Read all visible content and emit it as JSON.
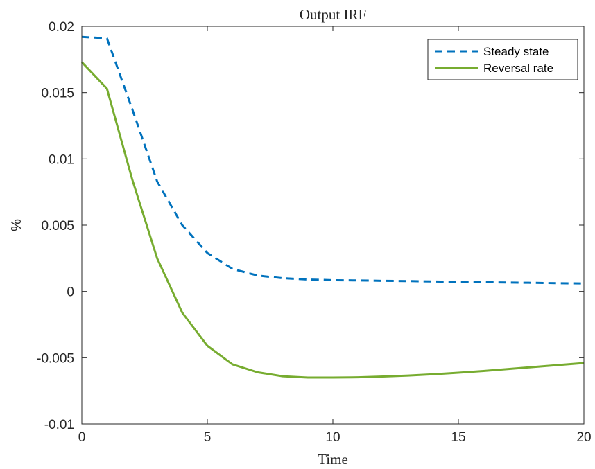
{
  "chart_data": {
    "type": "line",
    "title": "Output IRF",
    "xlabel": "Time",
    "ylabel": "%",
    "xlim": [
      0,
      20
    ],
    "ylim": [
      -0.01,
      0.02
    ],
    "xticks": [
      0,
      5,
      10,
      15,
      20
    ],
    "xtick_labels": [
      "0",
      "5",
      "10",
      "15",
      "20"
    ],
    "yticks": [
      -0.01,
      -0.005,
      0,
      0.005,
      0.01,
      0.015,
      0.02
    ],
    "ytick_labels": [
      "-0.01",
      "-0.005",
      "0",
      "0.005",
      "0.01",
      "0.015",
      "0.02"
    ],
    "grid": false,
    "legend_position": "top-right",
    "x": [
      0,
      1,
      2,
      3,
      4,
      5,
      6,
      7,
      8,
      9,
      10,
      11,
      12,
      13,
      14,
      15,
      16,
      17,
      18,
      19,
      20
    ],
    "series": [
      {
        "name": "Steady state",
        "color": "#0072BD",
        "style": "dashed",
        "values": [
          0.0192,
          0.0191,
          0.0138,
          0.0083,
          0.005,
          0.0029,
          0.0017,
          0.0012,
          0.001,
          0.0009,
          0.00085,
          0.00083,
          0.0008,
          0.00078,
          0.00075,
          0.00072,
          0.0007,
          0.00067,
          0.00065,
          0.00062,
          0.0006
        ]
      },
      {
        "name": "Reversal rate",
        "color": "#77AC30",
        "style": "solid",
        "values": [
          0.0173,
          0.0153,
          0.0085,
          0.0025,
          -0.0016,
          -0.0041,
          -0.0055,
          -0.0061,
          -0.0064,
          -0.0065,
          -0.0065,
          -0.00648,
          -0.00642,
          -0.00635,
          -0.00625,
          -0.00613,
          -0.006,
          -0.00585,
          -0.0057,
          -0.00555,
          -0.0054
        ]
      }
    ]
  }
}
